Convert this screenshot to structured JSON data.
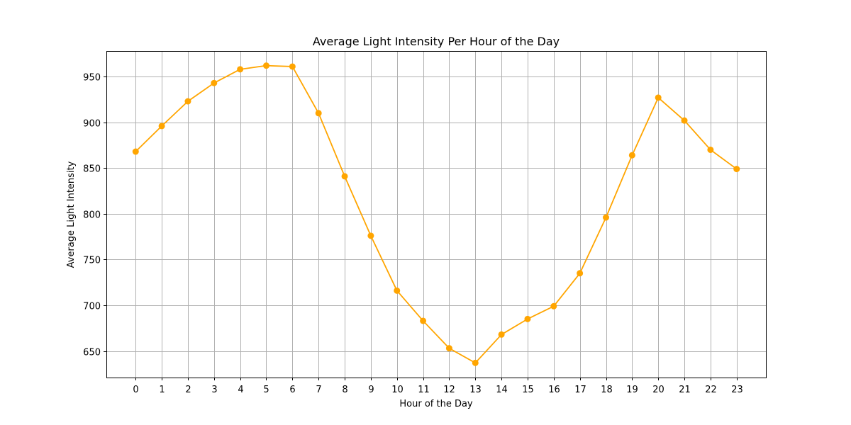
{
  "chart_data": {
    "type": "line",
    "title": "Average Light Intensity Per Hour of the Day",
    "xlabel": "Hour of the Day",
    "ylabel": "Average Light Intensity",
    "x": [
      0,
      1,
      2,
      3,
      4,
      5,
      6,
      7,
      8,
      9,
      10,
      11,
      12,
      13,
      14,
      15,
      16,
      17,
      18,
      19,
      20,
      21,
      22,
      23
    ],
    "series": [
      {
        "values": [
          868,
          896,
          923,
          943,
          958,
          962,
          961,
          910,
          841,
          776,
          716,
          683,
          653,
          637,
          668,
          685,
          699,
          735,
          796,
          864,
          927,
          902,
          870,
          849
        ]
      }
    ],
    "xticks": [
      0,
      1,
      2,
      3,
      4,
      5,
      6,
      7,
      8,
      9,
      10,
      11,
      12,
      13,
      14,
      15,
      16,
      17,
      18,
      19,
      20,
      21,
      22,
      23
    ],
    "yticks": [
      650,
      700,
      750,
      800,
      850,
      900,
      950
    ],
    "xlim": [
      -1.12,
      24.12
    ],
    "ylim": [
      621,
      978
    ],
    "grid": true,
    "color": "#ffa500",
    "marker": "circle"
  }
}
